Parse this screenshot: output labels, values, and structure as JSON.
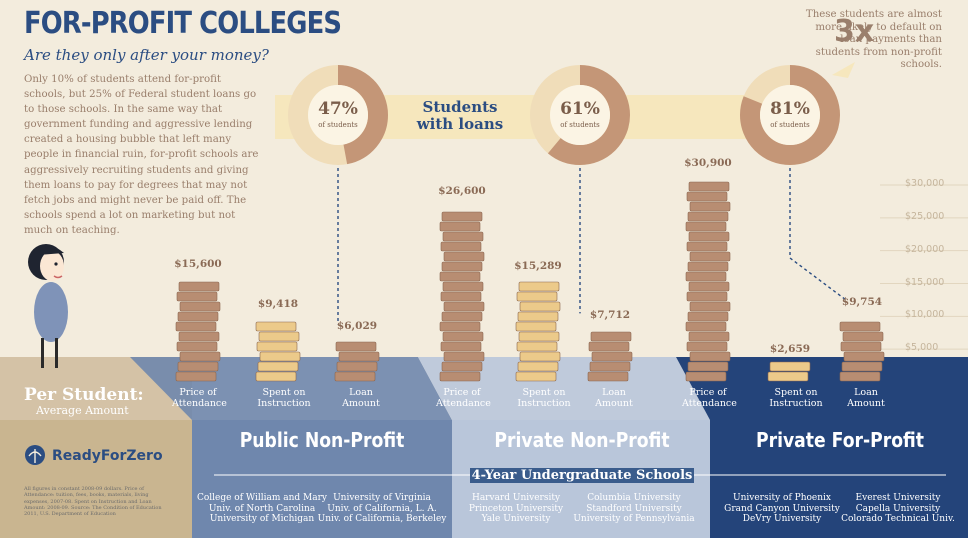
{
  "header": {
    "title": "FOR-PROFIT COLLEGES",
    "subtitle": "Are they only after your money?",
    "intro": "Only 10% of students attend for-profit schools, but 25% of Federal student loans go to those schools. In the same way that government funding and aggressive lending created a housing bubble that left many people in financial ruin, for-profit schools are aggressively recruiting students and giving them loans to pay for degrees that may not fetch jobs and might never be paid off. The schools spend a lot on marketing but not much on teaching."
  },
  "callout": {
    "big": "3x",
    "text": "These students are almost more likely to default on loan payments than students from non-profit schools."
  },
  "loans_banner": {
    "label": "Students with loans",
    "of_students": "of students"
  },
  "per_student": {
    "title": "Per Student:",
    "subtitle": "Average Amount"
  },
  "brand": {
    "name": "ReadyForZero"
  },
  "fine_print": "All figures in constant 2008-09 dollars. Price of Attendance: tuition, fees, books, materials, living expenses, 2007-08. Spent on Instruction and Loan Amount: 2008-09. Source: The Condition of Education 2011, U.S. Department of Education",
  "band_label": "4-Year Undergraduate Schools",
  "chart_data": {
    "type": "bar",
    "title": "",
    "categories": [
      "Price of Attendance",
      "Spent on Instruction",
      "Loan Amount"
    ],
    "ylim": [
      0,
      30000
    ],
    "y_ticks": [
      "$5,000",
      "$10,000",
      "$15,000",
      "$20,000",
      "$25,000",
      "$30,000"
    ],
    "groups": [
      {
        "name": "Public Non-Profit",
        "values": [
          15600,
          9418,
          6029
        ],
        "value_labels": [
          "$15,600",
          "$9,418",
          "$6,029"
        ],
        "students_with_loans": "47%",
        "loan_share": 0.47,
        "panel_color": "#6f87ad",
        "schools": [
          "College of William and Mary",
          "Univ. of North Carolina",
          "University of Michigan",
          "University of Virginia",
          "Univ. of California, L. A.",
          "Univ. of California, Berkeley"
        ]
      },
      {
        "name": "Private Non-Profit",
        "values": [
          26600,
          15289,
          7712
        ],
        "value_labels": [
          "$26,600",
          "$15,289",
          "$7,712"
        ],
        "students_with_loans": "61%",
        "loan_share": 0.61,
        "panel_color": "#b9c6da",
        "schools": [
          "Harvard University",
          "Princeton University",
          "Yale University",
          "Columbia University",
          "Standford University",
          "University of Pennsylvania"
        ]
      },
      {
        "name": "Private For-Profit",
        "values": [
          30900,
          2659,
          9754
        ],
        "value_labels": [
          "$30,900",
          "$2,659",
          "$9,754"
        ],
        "students_with_loans": "81%",
        "loan_share": 0.81,
        "panel_color": "#24447a",
        "schools": [
          "University of Phoenix",
          "Grand Canyon University",
          "DeVry University",
          "Everest University",
          "Capella University",
          "Colorado Technical Univ."
        ]
      }
    ],
    "colors": {
      "debt": "#b88d72",
      "instruction": "#ecca8a",
      "ring_light": "#f0ddb9",
      "ring_dark": "#c49677",
      "accent": "#2b4d82"
    }
  }
}
